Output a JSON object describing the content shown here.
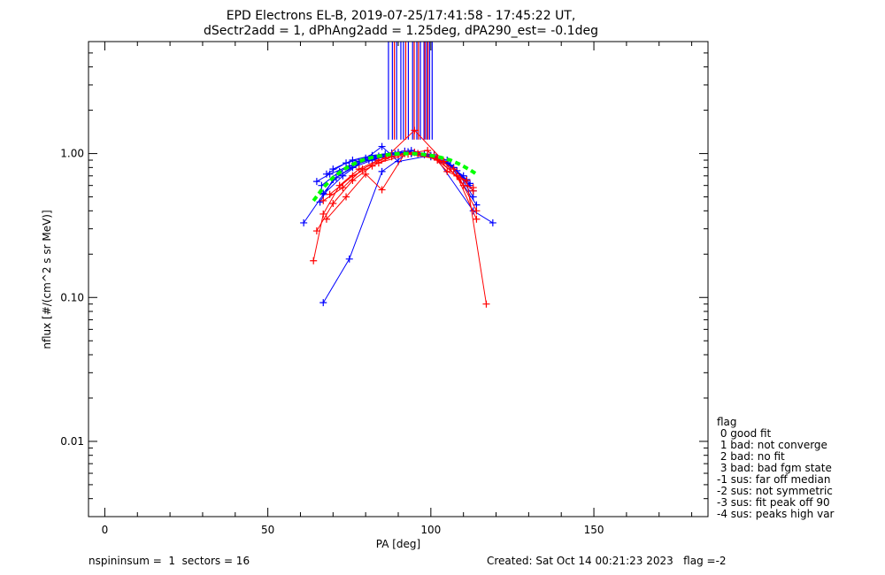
{
  "title_line1": "EPD Electrons EL-B, 2019-07-25/17:41:58 - 17:45:22 UT,",
  "title_line2": "dSectr2add = 1, dPhAng2add = 1.25deg, dPA290_est=  -0.1deg",
  "legend": {
    "title": "flag",
    "items": [
      " 0 good fit",
      " 1 bad: not converge",
      " 2 bad: no fit",
      " 3 bad: bad fgm state",
      "-1 sus: far off median",
      "-2 sus: not symmetric",
      "-3 sus: fit peak off 90",
      "-4 sus: peaks high var"
    ]
  },
  "footer": {
    "left": "nspininsum =  1  sectors = 16",
    "right": "Created: Sat Oct 14 00:21:23 2023   flag =-2"
  },
  "colors": {
    "blue": "#0000ff",
    "red": "#ff0000",
    "green": "#00ff00",
    "dark_green": "#008000",
    "axes": "#000000",
    "background": "#ffffff"
  },
  "chart_data": {
    "type": "scatter",
    "xlabel": "PA [deg]",
    "ylabel": "nflux [#/(cm^2 s sr MeV)]",
    "xlim": [
      -5,
      185
    ],
    "ylim": [
      0.003,
      6
    ],
    "yscale": "log",
    "xticks": [
      0,
      50,
      100,
      150
    ],
    "xtick_labels": [
      "0",
      "50",
      "100",
      "150"
    ],
    "yticks": [
      0.01,
      0.1,
      1.0
    ],
    "ytick_labels": [
      "0.01",
      "0.10",
      "1.00"
    ],
    "grid": false,
    "legend_position": "right",
    "vertical_lines": {
      "blue": [
        87,
        88.2,
        89.5,
        90.8,
        91.6,
        93.1,
        94.4,
        95.7,
        96.8,
        97.9,
        98.7,
        99.6,
        100.4
      ],
      "red": [
        88.8,
        92.3,
        94.9,
        96.2,
        98.2,
        99.1
      ],
      "from_y": 1.25,
      "to_y": 6
    },
    "series": [
      {
        "color": "blue",
        "x": [
          66,
          70,
          76,
          82,
          88,
          94,
          100,
          106,
          112
        ],
        "y": [
          0.46,
          0.66,
          0.8,
          0.9,
          0.98,
          1.0,
          0.97,
          0.83,
          0.6
        ]
      },
      {
        "color": "blue",
        "x": [
          67,
          71,
          77,
          83,
          89,
          95,
          101,
          107,
          113
        ],
        "y": [
          0.53,
          0.68,
          0.84,
          0.93,
          1.0,
          1.02,
          0.95,
          0.8,
          0.55
        ]
      },
      {
        "color": "blue",
        "x": [
          66.5,
          72,
          78,
          84,
          90,
          96,
          102,
          108,
          113
        ],
        "y": [
          0.6,
          0.75,
          0.88,
          0.96,
          1.02,
          1.0,
          0.92,
          0.76,
          0.5
        ]
      },
      {
        "color": "blue",
        "x": [
          65,
          69,
          75,
          81,
          87,
          93,
          99,
          105,
          112
        ],
        "y": [
          0.64,
          0.72,
          0.82,
          0.9,
          0.97,
          1.03,
          0.99,
          0.86,
          0.62
        ]
      },
      {
        "color": "blue",
        "x": [
          67,
          75,
          85,
          94,
          105,
          114
        ],
        "y": [
          0.092,
          0.185,
          0.75,
          1.05,
          0.9,
          0.44
        ]
      },
      {
        "color": "blue",
        "x": [
          61,
          67,
          73,
          85,
          90,
          101,
          113,
          119
        ],
        "y": [
          0.33,
          0.52,
          0.7,
          1.12,
          0.88,
          0.98,
          0.4,
          0.33
        ]
      },
      {
        "color": "blue",
        "x": [
          68,
          74,
          80,
          86,
          92,
          98,
          104,
          110
        ],
        "y": [
          0.72,
          0.86,
          0.93,
          0.99,
          1.04,
          0.98,
          0.87,
          0.7
        ]
      },
      {
        "color": "blue",
        "x": [
          70,
          76,
          82,
          88,
          94,
          100,
          106,
          111
        ],
        "y": [
          0.78,
          0.9,
          0.97,
          1.01,
          1.0,
          0.95,
          0.82,
          0.66
        ]
      },
      {
        "color": "red",
        "x": [
          64,
          67,
          72,
          78,
          84,
          90,
          96,
          102,
          108,
          114
        ],
        "y": [
          0.18,
          0.38,
          0.6,
          0.78,
          0.9,
          0.98,
          1.0,
          0.9,
          0.7,
          0.35
        ]
      },
      {
        "color": "red",
        "x": [
          65,
          70,
          76,
          82,
          88,
          95,
          101,
          107,
          113
        ],
        "y": [
          0.29,
          0.45,
          0.65,
          0.82,
          0.95,
          1.02,
          0.96,
          0.78,
          0.55
        ]
      },
      {
        "color": "red",
        "x": [
          68,
          74,
          80,
          85,
          92,
          99,
          105,
          111,
          117
        ],
        "y": [
          0.35,
          0.5,
          0.72,
          0.56,
          1.0,
          1.05,
          0.75,
          0.65,
          0.09
        ]
      },
      {
        "color": "red",
        "x": [
          67,
          73,
          79,
          86,
          95,
          104,
          110,
          113
        ],
        "y": [
          0.47,
          0.58,
          0.78,
          0.93,
          1.45,
          0.88,
          0.6,
          0.58
        ]
      },
      {
        "color": "red",
        "x": [
          69,
          76,
          84,
          93,
          102,
          109,
          114
        ],
        "y": [
          0.52,
          0.7,
          0.86,
          0.99,
          0.92,
          0.66,
          0.4
        ]
      }
    ],
    "fit_curve": {
      "color": "green",
      "x": [
        64,
        67,
        70,
        73,
        76,
        79,
        82,
        85,
        88,
        91,
        94,
        97,
        100,
        103,
        106,
        109,
        112,
        114
      ],
      "y": [
        0.47,
        0.58,
        0.68,
        0.77,
        0.84,
        0.9,
        0.94,
        0.97,
        0.99,
        1.0,
        1.0,
        0.99,
        0.97,
        0.94,
        0.9,
        0.84,
        0.77,
        0.72
      ]
    }
  }
}
